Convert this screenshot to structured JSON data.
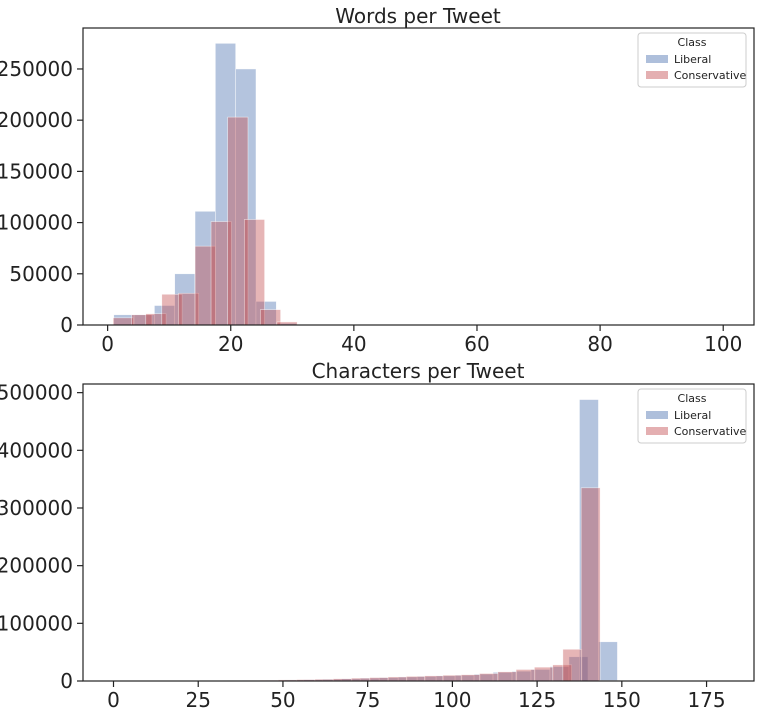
{
  "chart_data": [
    {
      "type": "bar",
      "title": "Words per Tweet",
      "xlabel": "",
      "ylabel": "",
      "xlim": [
        -4,
        105
      ],
      "ylim": [
        0,
        290000
      ],
      "xticks": [
        0,
        20,
        40,
        60,
        80,
        100
      ],
      "yticks": [
        0,
        50000,
        100000,
        150000,
        200000,
        250000
      ],
      "grid": false,
      "legend": {
        "title": "Class",
        "position": "top-right"
      },
      "bin_width": 3.3,
      "series": [
        {
          "name": "Liberal",
          "color": "#4c72b0",
          "bins": [
            {
              "x0": 1.0,
              "value": 10000
            },
            {
              "x0": 4.3,
              "value": 10000
            },
            {
              "x0": 7.6,
              "value": 19000
            },
            {
              "x0": 10.9,
              "value": 50000
            },
            {
              "x0": 14.2,
              "value": 111000
            },
            {
              "x0": 17.5,
              "value": 275000
            },
            {
              "x0": 20.8,
              "value": 250000
            },
            {
              "x0": 24.1,
              "value": 23000
            },
            {
              "x0": 27.4,
              "value": 1500
            }
          ]
        },
        {
          "name": "Conservative",
          "color": "#c44e52",
          "bins": [
            {
              "x0": 0.9,
              "value": 7000
            },
            {
              "x0": 3.9,
              "value": 10000
            },
            {
              "x0": 6.2,
              "value": 11000
            },
            {
              "x0": 8.8,
              "value": 30000
            },
            {
              "x0": 11.5,
              "value": 31000
            },
            {
              "x0": 14.2,
              "value": 77000
            },
            {
              "x0": 16.8,
              "value": 101000
            },
            {
              "x0": 19.5,
              "value": 203000
            },
            {
              "x0": 22.2,
              "value": 103000
            },
            {
              "x0": 24.8,
              "value": 15000
            },
            {
              "x0": 27.5,
              "value": 3000
            }
          ]
        }
      ]
    },
    {
      "type": "bar",
      "title": "Characters per Tweet",
      "xlabel": "",
      "ylabel": "",
      "xlim": [
        -9,
        189
      ],
      "ylim": [
        0,
        515000
      ],
      "xticks": [
        0,
        25,
        50,
        75,
        100,
        125,
        150,
        175
      ],
      "yticks": [
        0,
        100000,
        200000,
        300000,
        400000,
        500000
      ],
      "grid": false,
      "legend": {
        "title": "Class",
        "position": "top-right"
      },
      "bin_width": 5.6,
      "series": [
        {
          "name": "Liberal",
          "color": "#4c72b0",
          "bins": [
            {
              "x0": 0.0,
              "value": 500
            },
            {
              "x0": 5.6,
              "value": 500
            },
            {
              "x0": 11.2,
              "value": 600
            },
            {
              "x0": 16.8,
              "value": 700
            },
            {
              "x0": 22.4,
              "value": 800
            },
            {
              "x0": 28.0,
              "value": 900
            },
            {
              "x0": 33.6,
              "value": 1000
            },
            {
              "x0": 39.2,
              "value": 1200
            },
            {
              "x0": 44.8,
              "value": 1500
            },
            {
              "x0": 50.4,
              "value": 2000
            },
            {
              "x0": 56.0,
              "value": 2500
            },
            {
              "x0": 61.6,
              "value": 3000
            },
            {
              "x0": 67.2,
              "value": 4000
            },
            {
              "x0": 72.8,
              "value": 5000
            },
            {
              "x0": 78.4,
              "value": 6000
            },
            {
              "x0": 84.0,
              "value": 7000
            },
            {
              "x0": 89.6,
              "value": 8000
            },
            {
              "x0": 95.2,
              "value": 9000
            },
            {
              "x0": 100.8,
              "value": 10000
            },
            {
              "x0": 106.4,
              "value": 12000
            },
            {
              "x0": 112.0,
              "value": 15000
            },
            {
              "x0": 117.6,
              "value": 17000
            },
            {
              "x0": 123.2,
              "value": 20000
            },
            {
              "x0": 128.8,
              "value": 25000
            },
            {
              "x0": 134.4,
              "value": 42000
            },
            {
              "x0": 137.5,
              "value": 488000
            },
            {
              "x0": 143.1,
              "value": 68000
            },
            {
              "x0": 148.7,
              "value": 500
            }
          ]
        },
        {
          "name": "Conservative",
          "color": "#c44e52",
          "bins": [
            {
              "x0": 0.0,
              "value": 400
            },
            {
              "x0": 5.4,
              "value": 400
            },
            {
              "x0": 10.8,
              "value": 500
            },
            {
              "x0": 16.2,
              "value": 600
            },
            {
              "x0": 21.6,
              "value": 700
            },
            {
              "x0": 27.0,
              "value": 800
            },
            {
              "x0": 32.4,
              "value": 900
            },
            {
              "x0": 37.8,
              "value": 1000
            },
            {
              "x0": 43.2,
              "value": 1500
            },
            {
              "x0": 48.6,
              "value": 2000
            },
            {
              "x0": 54.0,
              "value": 2500
            },
            {
              "x0": 59.4,
              "value": 3000
            },
            {
              "x0": 64.8,
              "value": 4000
            },
            {
              "x0": 70.2,
              "value": 5000
            },
            {
              "x0": 75.6,
              "value": 6000
            },
            {
              "x0": 81.0,
              "value": 7000
            },
            {
              "x0": 86.4,
              "value": 8000
            },
            {
              "x0": 91.8,
              "value": 9000
            },
            {
              "x0": 97.2,
              "value": 10000
            },
            {
              "x0": 102.6,
              "value": 11000
            },
            {
              "x0": 108.0,
              "value": 13000
            },
            {
              "x0": 113.4,
              "value": 16000
            },
            {
              "x0": 118.8,
              "value": 20000
            },
            {
              "x0": 124.2,
              "value": 24000
            },
            {
              "x0": 129.6,
              "value": 28000
            },
            {
              "x0": 132.6,
              "value": 55000
            },
            {
              "x0": 138.0,
              "value": 335000
            },
            {
              "x0": 143.4,
              "value": 1000
            }
          ]
        }
      ]
    }
  ]
}
